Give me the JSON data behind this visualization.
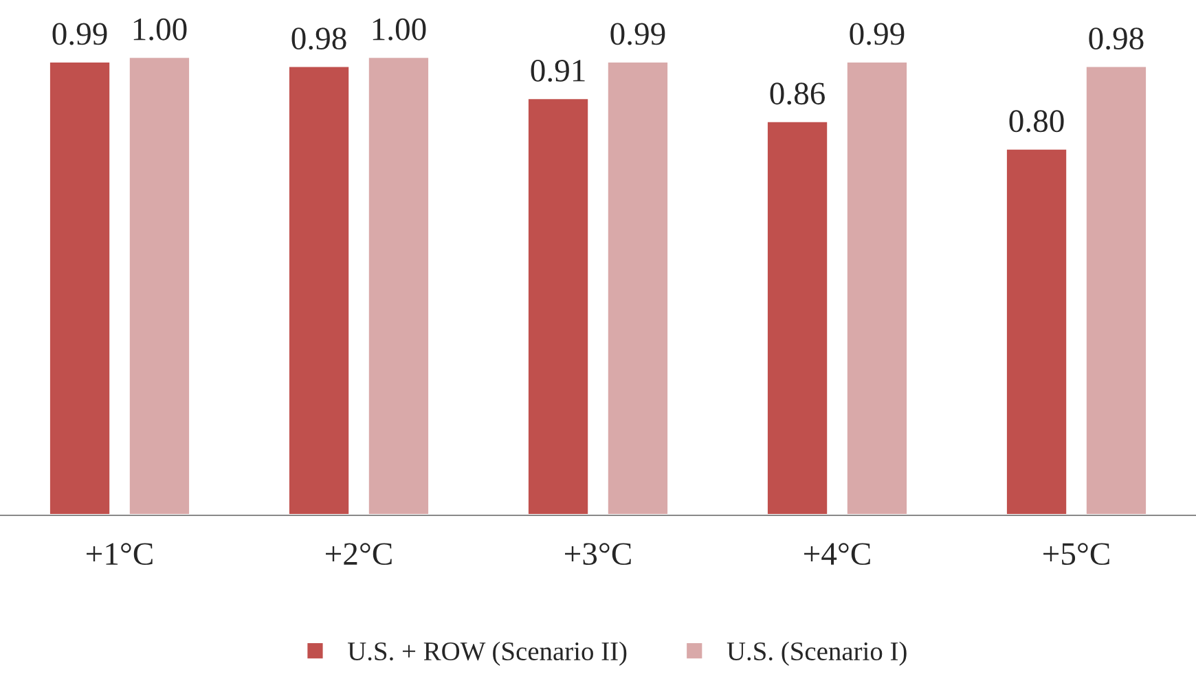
{
  "chart_data": {
    "type": "bar",
    "tick_labels": "x",
    "categories": [
      "+1°C",
      "+2°C",
      "+3°C",
      "+4°C",
      "+5°C"
    ],
    "series": [
      {
        "name": "U.S. + ROW (Scenario II)",
        "color": "#c0504d",
        "values": [
          0.99,
          0.98,
          0.91,
          0.86,
          0.8
        ],
        "value_labels": [
          "0.99",
          "0.98",
          "0.91",
          "0.86",
          "0.80"
        ]
      },
      {
        "name": "U.S. (Scenario I)",
        "color": "#d9a9a9",
        "values": [
          1.0,
          1.0,
          0.99,
          0.99,
          0.98
        ],
        "value_labels": [
          "1.00",
          "1.00",
          "0.99",
          "0.99",
          "0.98"
        ]
      }
    ],
    "legend": "bottom",
    "grid": false
  }
}
